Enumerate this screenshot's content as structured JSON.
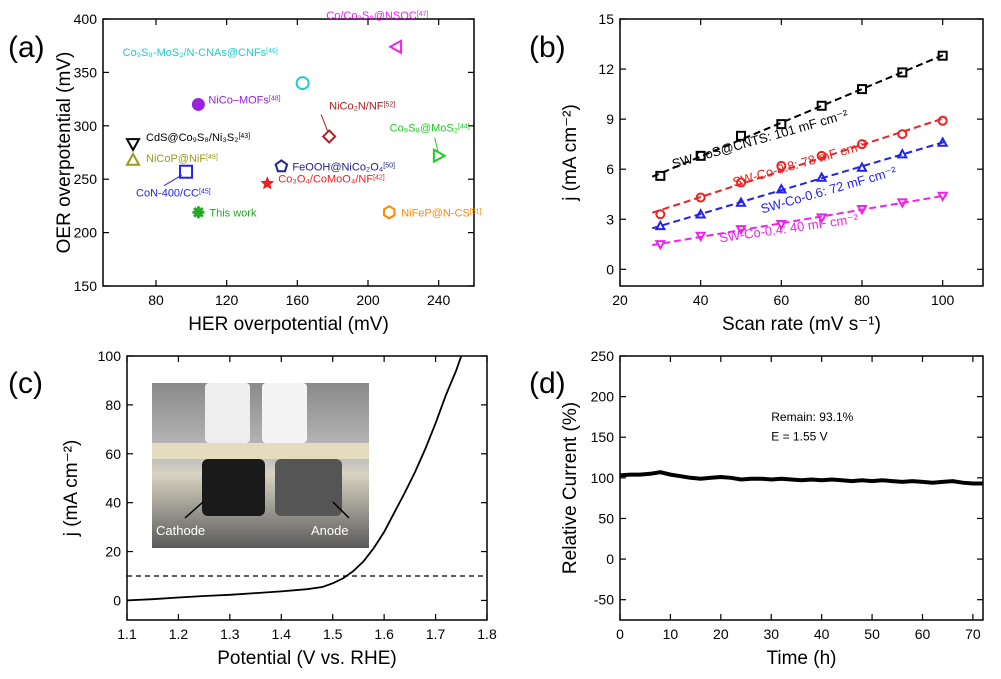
{
  "chart_data": [
    {
      "panel": "(a)",
      "type": "scatter",
      "xlabel": "HER overpotential (mV)",
      "ylabel": "OER overpotential (mV)",
      "xlim": [
        50,
        260
      ],
      "ylim": [
        150,
        400
      ],
      "xticks": [
        80,
        120,
        160,
        200,
        240
      ],
      "yticks": [
        150,
        200,
        250,
        300,
        350,
        400
      ],
      "points": [
        {
          "label": "Co/Co₃S₈@NSOC",
          "ref": "[47]",
          "x": 216,
          "y": 374,
          "color": "#ee22ee",
          "marker": "tri-left"
        },
        {
          "label": "Co₉S₈-MoS₂/N-CNAs@CNFs",
          "ref": "[46]",
          "x": 163,
          "y": 340,
          "color": "#22cccc",
          "marker": "circle"
        },
        {
          "label": "NiCo–MOFs",
          "ref": "[48]",
          "x": 104,
          "y": 320,
          "color": "#9922dd",
          "marker": "circle-filled"
        },
        {
          "label": "NiCo₂N/NF",
          "ref": "[52]",
          "x": 178,
          "y": 290,
          "color": "#aa2222",
          "marker": "diamond"
        },
        {
          "label": "CdS@Co₉S₈/Ni₃S₂",
          "ref": "[43]",
          "x": 67,
          "y": 283,
          "color": "#000000",
          "marker": "tri-down"
        },
        {
          "label": "Co₉S₈@MoS₂",
          "ref": "[44]",
          "x": 240,
          "y": 272,
          "color": "#22cc22",
          "marker": "tri-right"
        },
        {
          "label": "NiCoP@NiF",
          "ref": "[49]",
          "x": 67,
          "y": 268,
          "color": "#999922",
          "marker": "tri-up"
        },
        {
          "label": "FeOOH@NiCo₂O₄",
          "ref": "[50]",
          "x": 151,
          "y": 262,
          "color": "#222288",
          "marker": "pentagon"
        },
        {
          "label": "CoN-400/CC",
          "ref": "[45]",
          "x": 97,
          "y": 257,
          "color": "#2222ee",
          "marker": "square"
        },
        {
          "label": "Co₃O₄/CoMoO₄/NF",
          "ref": "[42]",
          "x": 143,
          "y": 246,
          "color": "#ee2222",
          "marker": "star"
        },
        {
          "label": "This work",
          "ref": "",
          "x": 104,
          "y": 219,
          "color": "#22aa22",
          "marker": "asterisk"
        },
        {
          "label": "NiFeP@N-CS",
          "ref": "[51]",
          "x": 212,
          "y": 219,
          "color": "#ff8800",
          "marker": "hexagon"
        }
      ]
    },
    {
      "panel": "(b)",
      "type": "scatter",
      "xlabel": "Scan rate (mV s⁻¹)",
      "ylabel": "j (mA cm⁻²)",
      "xlim": [
        20,
        110
      ],
      "ylim": [
        -1,
        15
      ],
      "xticks": [
        20,
        40,
        60,
        80,
        100
      ],
      "yticks": [
        0,
        3,
        6,
        9,
        12,
        15
      ],
      "series": [
        {
          "name": "SW-CoS@CNTS: 101 mF cm⁻²",
          "color": "#000000",
          "marker": "square",
          "x": [
            30,
            40,
            50,
            60,
            70,
            80,
            90,
            100
          ],
          "values": [
            5.6,
            6.8,
            8.0,
            8.7,
            9.8,
            10.8,
            11.8,
            12.8
          ]
        },
        {
          "name": "SW-Co-0.8: 78 mF cm⁻²",
          "color": "#ee2222",
          "marker": "circle",
          "x": [
            30,
            40,
            50,
            60,
            70,
            80,
            90,
            100
          ],
          "values": [
            3.3,
            4.3,
            5.2,
            6.2,
            6.8,
            7.5,
            8.1,
            8.9
          ]
        },
        {
          "name": "SW-Co-0.6: 72 mF cm⁻²",
          "color": "#2222ee",
          "marker": "tri-up",
          "x": [
            30,
            40,
            50,
            60,
            70,
            80,
            90,
            100
          ],
          "values": [
            2.6,
            3.3,
            4.0,
            4.8,
            5.5,
            6.1,
            6.9,
            7.6
          ]
        },
        {
          "name": "SW-Co-0.4: 40 mF cm⁻²",
          "color": "#ee22ee",
          "marker": "tri-down",
          "x": [
            30,
            40,
            50,
            60,
            70,
            80,
            90,
            100
          ],
          "values": [
            1.5,
            2.0,
            2.4,
            2.7,
            3.1,
            3.6,
            4.0,
            4.4
          ]
        }
      ]
    },
    {
      "panel": "(c)",
      "type": "line",
      "xlabel": "Potential (V vs. RHE)",
      "ylabel": "j (mA cm⁻²)",
      "xlim": [
        1.1,
        1.8
      ],
      "ylim": [
        -8,
        100
      ],
      "xticks": [
        1.1,
        1.2,
        1.3,
        1.4,
        1.5,
        1.6,
        1.7,
        1.8
      ],
      "yticks": [
        0,
        20,
        40,
        60,
        80,
        100
      ],
      "reference_line": 10,
      "series": [
        {
          "name": "",
          "color": "#000000",
          "x": [
            1.1,
            1.15,
            1.2,
            1.25,
            1.3,
            1.35,
            1.4,
            1.45,
            1.48,
            1.5,
            1.52,
            1.54,
            1.56,
            1.58,
            1.6,
            1.62,
            1.64,
            1.66,
            1.68,
            1.7,
            1.72,
            1.74,
            1.75
          ],
          "values": [
            0,
            0.5,
            1.2,
            1.8,
            2.3,
            3,
            3.7,
            4.6,
            5.5,
            7,
            9,
            12,
            16,
            21.5,
            28,
            36,
            44,
            52.5,
            62,
            72.5,
            84,
            94,
            100
          ]
        }
      ],
      "inset_labels": {
        "cathode": "Cathode",
        "anode": "Anode"
      }
    },
    {
      "panel": "(d)",
      "type": "line",
      "xlabel": "Time (h)",
      "ylabel": "Relative Current (%)",
      "xlim": [
        0,
        72
      ],
      "ylim": [
        -75,
        250
      ],
      "xticks": [
        0,
        10,
        20,
        30,
        40,
        50,
        60,
        70
      ],
      "yticks": [
        -50,
        0,
        50,
        100,
        150,
        200,
        250
      ],
      "annotation": [
        "Remain: 93.1%",
        "E = 1.55 V"
      ],
      "series": [
        {
          "name": "",
          "color": "#000000",
          "x": [
            0,
            2,
            4,
            6,
            8,
            10,
            12,
            14,
            16,
            18,
            20,
            22,
            24,
            26,
            28,
            30,
            32,
            34,
            36,
            38,
            40,
            42,
            44,
            46,
            48,
            50,
            52,
            54,
            56,
            58,
            60,
            62,
            64,
            66,
            68,
            70,
            72
          ],
          "values": [
            103,
            104,
            104,
            105,
            107,
            104,
            102,
            100,
            99,
            100,
            101,
            100,
            98,
            99,
            99,
            98,
            99,
            98,
            97,
            98,
            97,
            98,
            97,
            96,
            97,
            96,
            97,
            96,
            95,
            96,
            95,
            94,
            95,
            96,
            94,
            93,
            93
          ]
        }
      ]
    }
  ]
}
